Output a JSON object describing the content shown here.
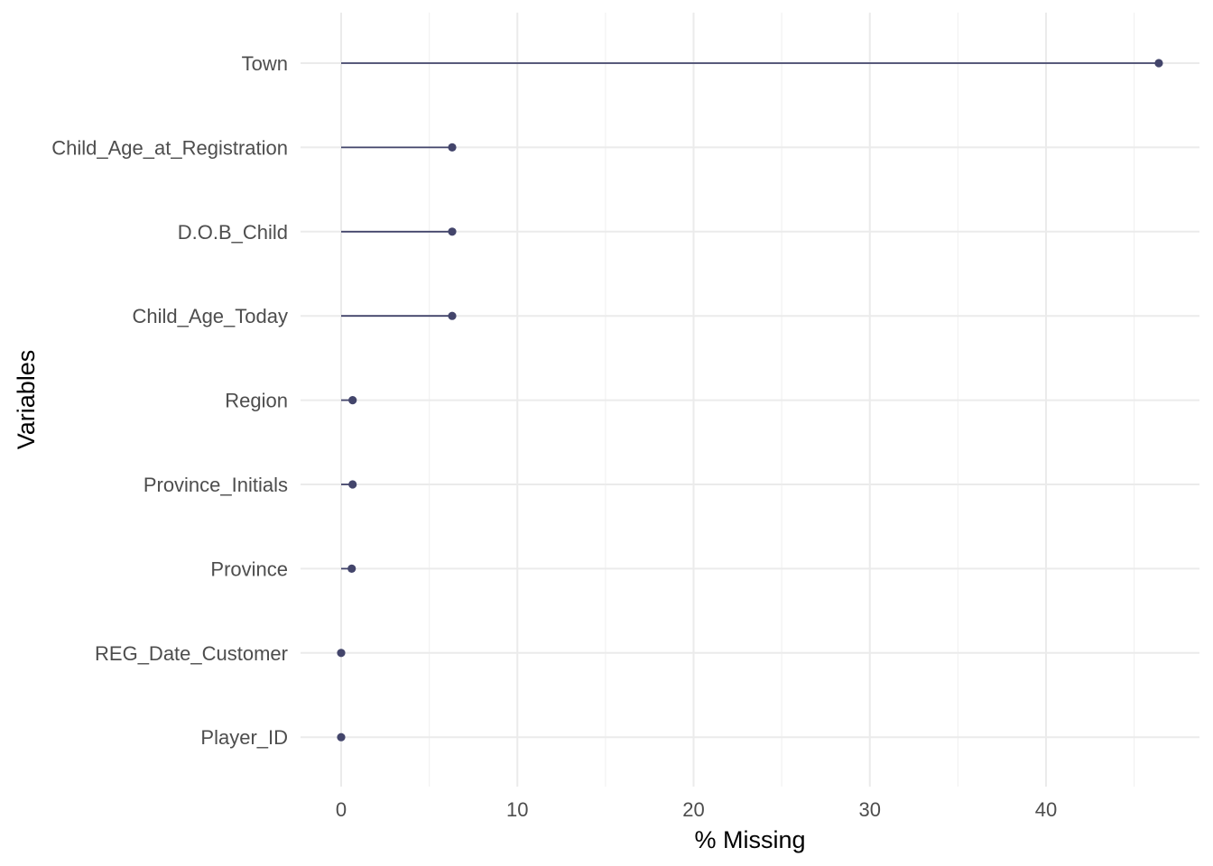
{
  "chart_data": {
    "type": "lollipop",
    "xlabel": "% Missing",
    "ylabel": "Variables",
    "xlim": [
      -2.3,
      48
    ],
    "x_ticks": [
      "0",
      "10",
      "20",
      "30",
      "40"
    ],
    "x_tick_values": [
      0,
      10,
      20,
      30,
      40
    ],
    "categories": [
      "Town",
      "Child_Age_at_Registration",
      "D.O.B_Child",
      "Child_Age_Today",
      "Region",
      "Province_Initials",
      "Province",
      "REG_Date_Customer",
      "Player_ID"
    ],
    "values": [
      46.4,
      6.3,
      6.3,
      6.3,
      0.65,
      0.65,
      0.6,
      0.0,
      0.0
    ],
    "grid": true,
    "colors": {
      "point": "#43456b",
      "line": "#43456b",
      "grid_major": "#ebebeb",
      "grid_minor": "#f2f2f2"
    }
  }
}
